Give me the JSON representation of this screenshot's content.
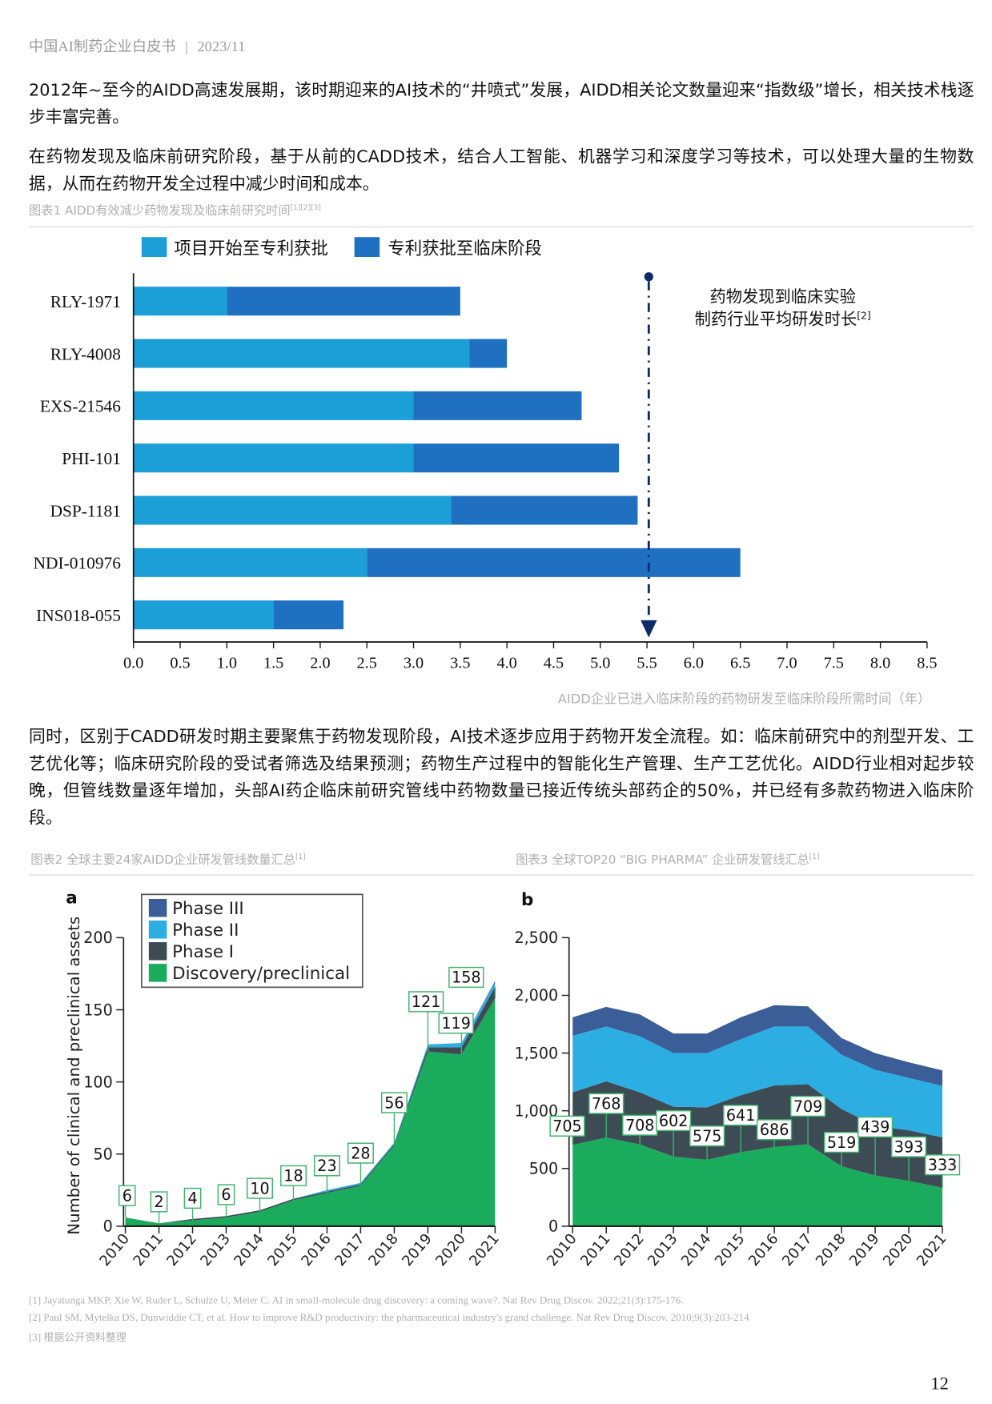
{
  "header": {
    "title": "中国AI制药企业白皮书",
    "separator": "|",
    "date": "2023/11"
  },
  "paragraphs": {
    "p1": "2012年~至今的AIDD高速发展期，该时期迎来的AI技术的“井喷式”发展，AIDD相关论文数量迎来“指数级”增长，相关技术栈逐步丰富完善。",
    "p2": "在药物发现及临床前研究阶段，基于从前的CADD技术，结合人工智能、机器学习和深度学习等技术，可以处理大量的生物数据，从而在药物开发全过程中减少时间和成本。",
    "p3": "同时，区别于CADD研发时期主要聚焦于药物发现阶段，AI技术逐步应用于药物开发全流程。如：临床前研究中的剂型开发、工艺优化等；临床研究阶段的受试者筛选及结果预测；药物生产过程中的智能化生产管理、生产工艺优化。AIDD行业相对起步较晚，但管线数量逐年增加，头部AI药企临床前研究管线中药物数量已接近传统头部药企的50%，并已经有多款药物进入临床阶段。"
  },
  "captions": {
    "fig1": "图表1 AIDD有效减少药物发现及临床前研究时间",
    "fig1_refs": "[1][2][3]",
    "fig2": "图表2 全球主要24家AIDD企业研发管线数量汇总",
    "fig2_refs": "[1]",
    "fig3": "图表3 全球TOP20 “BIG PHARMA” 企业研发管线汇总",
    "fig3_refs": "[1]"
  },
  "chart_data": [
    {
      "type": "bar",
      "orientation": "horizontal-stacked",
      "title": "图表1 AIDD有效减少药物发现及临床前研究时间",
      "categories": [
        "RLY-1971",
        "RLY-4008",
        "EXS-21546",
        "PHI-101",
        "DSP-1181",
        "NDI-010976",
        "INS018-055"
      ],
      "series": [
        {
          "name": "项目开始至专利获批",
          "color": "#1c9ed6",
          "values": [
            1.0,
            3.6,
            3.0,
            3.0,
            3.4,
            2.5,
            1.5
          ]
        },
        {
          "name": "专利获批至临床阶段",
          "color": "#1f70c1",
          "values": [
            2.5,
            0.4,
            1.8,
            2.2,
            2.0,
            4.0,
            0.75
          ]
        }
      ],
      "xlim": [
        0,
        8.5
      ],
      "xticks": [
        "0.0",
        "0.5",
        "1.0",
        "1.5",
        "2.0",
        "2.5",
        "3.0",
        "3.5",
        "4.0",
        "4.5",
        "5.0",
        "5.5",
        "6.0",
        "6.5",
        "7.0",
        "7.5",
        "8.0",
        "8.5"
      ],
      "xlabel": "AIDD企业已进入临床阶段的药物研发至临床阶段所需时间（年）",
      "legend": "top",
      "reference_line": {
        "value": 5.5,
        "label_line1": "药物发现到临床实验",
        "label_line2": "制药行业平均研发时长",
        "label_ref": "[2]",
        "color": "#0d2a6b"
      }
    },
    {
      "type": "area",
      "panel": "a",
      "stacked": true,
      "title": "图表2 全球主要24家AIDD企业研发管线数量汇总",
      "x": [
        2010,
        2011,
        2012,
        2013,
        2014,
        2015,
        2016,
        2017,
        2018,
        2019,
        2020,
        2021
      ],
      "series": [
        {
          "name": "Discovery/preclinical",
          "color": "#1aac5c",
          "values": [
            6,
            2,
            4,
            6,
            10,
            18,
            23,
            28,
            56,
            121,
            119,
            158
          ]
        },
        {
          "name": "Phase I",
          "color": "#3d4b55",
          "values": [
            0,
            0,
            1,
            1,
            1,
            1,
            1,
            1,
            1,
            3,
            5,
            8
          ]
        },
        {
          "name": "Phase II",
          "color": "#2daee2",
          "values": [
            0,
            0,
            0,
            0,
            0,
            0,
            1,
            1,
            1,
            2,
            3,
            3
          ]
        },
        {
          "name": "Phase III",
          "color": "#3b5d98",
          "values": [
            0,
            0,
            0,
            0,
            0,
            0,
            0,
            0,
            0,
            0,
            0,
            1
          ]
        }
      ],
      "data_labels": [
        6,
        2,
        4,
        6,
        10,
        18,
        23,
        28,
        56,
        121,
        119,
        158
      ],
      "ylabel": "Number of clinical and preclinical assets",
      "ylim": [
        0,
        200
      ],
      "yticks": [
        "0",
        "50",
        "100",
        "150",
        "200"
      ],
      "legend": "top-left",
      "legend_order": [
        "Phase III",
        "Phase II",
        "Phase I",
        "Discovery/preclinical"
      ]
    },
    {
      "type": "area",
      "panel": "b",
      "stacked": true,
      "title": "图表3 全球TOP20 “BIG PHARMA” 企业研发管线汇总",
      "x": [
        2010,
        2011,
        2012,
        2013,
        2014,
        2015,
        2016,
        2017,
        2018,
        2019,
        2020,
        2021
      ],
      "series": [
        {
          "name": "Discovery/preclinical",
          "color": "#1aac5c",
          "values": [
            705,
            768,
            708,
            602,
            575,
            641,
            686,
            709,
            519,
            439,
            393,
            333
          ]
        },
        {
          "name": "Phase I",
          "color": "#3d4b55",
          "values": [
            455,
            487,
            452,
            433,
            455,
            494,
            534,
            521,
            496,
            431,
            437,
            437
          ]
        },
        {
          "name": "Phase II",
          "color": "#2daee2",
          "values": [
            490,
            475,
            485,
            465,
            470,
            485,
            510,
            500,
            470,
            485,
            455,
            445
          ]
        },
        {
          "name": "Phase III",
          "color": "#3b5d98",
          "values": [
            160,
            170,
            190,
            170,
            170,
            190,
            185,
            175,
            145,
            145,
            135,
            135
          ]
        }
      ],
      "data_labels": [
        705,
        768,
        708,
        602,
        575,
        641,
        686,
        709,
        519,
        439,
        393,
        333
      ],
      "ylim": [
        0,
        2500
      ],
      "yticks": [
        "0",
        "500",
        "1,000",
        "1,500",
        "2,000",
        "2,500"
      ]
    }
  ],
  "bar_axis_ticks": [
    "0.0",
    "0.5",
    "1.0",
    "1.5",
    "2.0",
    "2.5",
    "3.0",
    "3.5",
    "4.0",
    "4.5",
    "5.0",
    "5.5",
    "6.0",
    "6.5",
    "7.0",
    "7.5",
    "8.0",
    "8.5"
  ],
  "footnotes": [
    "[1] Jayatunga MKP, Xie W, Ruder L, Schulze U, Meier C. AI in small-molecule drug discovery: a coming wave?. Nat Rev Drug Discov. 2022;21(3):175-176.",
    "[2] Paul SM, Mytelka DS, Dunwiddie CT, et al. How to improve R&D productivity: the pharmaceutical industry's grand challenge. Nat Rev Drug Discov. 2010;9(3):203-214",
    "[3] 根据公开资料整理"
  ],
  "page_number": "12"
}
